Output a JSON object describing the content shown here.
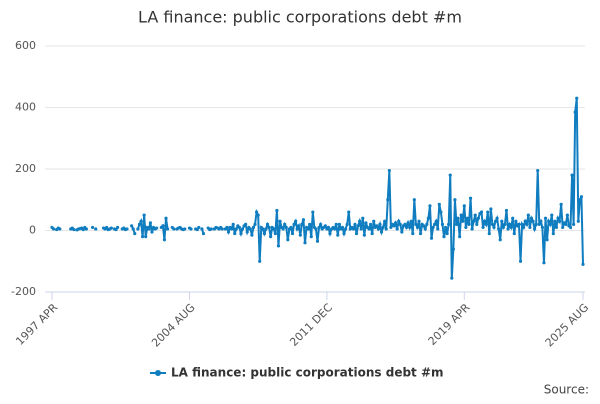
{
  "chart_data": {
    "type": "line",
    "title": "LA finance: public corporations debt #m",
    "source_label": "Source:",
    "categories": [
      "1997 APR",
      null,
      null,
      null,
      null,
      null,
      null,
      null,
      null,
      null,
      null,
      null,
      null,
      null,
      null,
      null,
      null,
      null,
      null,
      null,
      null,
      null,
      null,
      null,
      null,
      null,
      null,
      null,
      null,
      null,
      null,
      null,
      null,
      null,
      null,
      null,
      null,
      null,
      null,
      null,
      null,
      null,
      null,
      null,
      null,
      null,
      null,
      null,
      null,
      null,
      null,
      null,
      null,
      null,
      null,
      null,
      null,
      null,
      null,
      null,
      null,
      null,
      null,
      null,
      null,
      null,
      null,
      null,
      null,
      null,
      null,
      null,
      null,
      null,
      null,
      null,
      null,
      null,
      null,
      null,
      null,
      null,
      null,
      null,
      null,
      null,
      null,
      null,
      "2004 AUG",
      null,
      null,
      null,
      null,
      null,
      null,
      null,
      null,
      null,
      null,
      null,
      null,
      null,
      null,
      null,
      null,
      null,
      null,
      null,
      null,
      null,
      null,
      null,
      null,
      null,
      null,
      null,
      null,
      null,
      null,
      null,
      null,
      null,
      null,
      null,
      null,
      null,
      null,
      null,
      null,
      null,
      null,
      null,
      null,
      null,
      null,
      null,
      null,
      null,
      null,
      null,
      null,
      null,
      null,
      null,
      null,
      null,
      null,
      null,
      null,
      null,
      null,
      null,
      null,
      null,
      null,
      null,
      null,
      null,
      null,
      null,
      null,
      null,
      null,
      null,
      null,
      null,
      null,
      null,
      null,
      null,
      null,
      null,
      null,
      null,
      null,
      null,
      "2011 DEC",
      null,
      null,
      null,
      null,
      null,
      null,
      null,
      null,
      null,
      null,
      null,
      null,
      null,
      null,
      null,
      null,
      null,
      null,
      null,
      null,
      null,
      null,
      null,
      null,
      null,
      null,
      null,
      null,
      null,
      null,
      null,
      null,
      null,
      null,
      null,
      null,
      null,
      null,
      null,
      null,
      null,
      null,
      null,
      null,
      null,
      null,
      null,
      null,
      null,
      null,
      null,
      null,
      null,
      null,
      null,
      null,
      null,
      null,
      null,
      null,
      null,
      null,
      null,
      null,
      null,
      null,
      null,
      null,
      null,
      null,
      null,
      null,
      null,
      null,
      null,
      null,
      null,
      null,
      null,
      null,
      null,
      null,
      null,
      null,
      null,
      null,
      null,
      "2019 APR",
      null,
      null,
      null,
      null,
      null,
      null,
      null,
      null,
      null,
      null,
      null,
      null,
      null,
      null,
      null,
      null,
      null,
      null,
      null,
      null,
      null,
      null,
      null,
      null,
      null,
      null,
      null,
      null,
      null,
      null,
      null,
      null,
      null,
      null,
      null,
      null,
      null,
      null,
      null,
      null,
      null,
      null,
      null,
      null,
      null,
      null,
      null,
      null,
      null,
      null,
      null,
      null,
      null,
      null,
      null,
      null,
      null,
      null,
      null,
      null,
      null,
      null,
      null,
      null,
      null,
      null,
      null,
      null,
      null,
      null,
      null,
      null,
      null,
      null,
      null,
      "2025 AUG"
    ],
    "series": [
      {
        "name": "LA finance: public corporations debt #m",
        "color": "#0f7dbf",
        "values": [
          10,
          5,
          null,
          3,
          8,
          5,
          null,
          null,
          null,
          null,
          null,
          null,
          5,
          8,
          3,
          null,
          2,
          5,
          6,
          8,
          3,
          10,
          5,
          null,
          null,
          null,
          10,
          null,
          5,
          null,
          null,
          null,
          null,
          8,
          5,
          10,
          3,
          5,
          8,
          null,
          5,
          3,
          10,
          null,
          null,
          5,
          8,
          3,
          5,
          null,
          null,
          15,
          5,
          -10,
          null,
          5,
          20,
          30,
          -20,
          50,
          -20,
          10,
          5,
          25,
          -5,
          10,
          5,
          8,
          null,
          null,
          10,
          15,
          -30,
          40,
          5,
          null,
          null,
          10,
          5,
          null,
          5,
          8,
          10,
          5,
          3,
          5,
          null,
          null,
          8,
          5,
          null,
          null,
          5,
          3,
          10,
          null,
          5,
          -10,
          null,
          null,
          8,
          3,
          5,
          null,
          5,
          10,
          8,
          5,
          10,
          5,
          null,
          5,
          10,
          -5,
          10,
          5,
          20,
          -10,
          5,
          15,
          10,
          -10,
          5,
          15,
          20,
          -5,
          10,
          5,
          -15,
          10,
          20,
          60,
          50,
          -100,
          10,
          5,
          -10,
          5,
          20,
          10,
          -20,
          10,
          5,
          -10,
          65,
          -50,
          30,
          10,
          5,
          20,
          10,
          -30,
          5,
          10,
          -10,
          20,
          30,
          5,
          15,
          -15,
          20,
          35,
          -40,
          10,
          5,
          20,
          -20,
          60,
          10,
          5,
          -35,
          10,
          20,
          5,
          10,
          15,
          5,
          10,
          -10,
          5,
          10,
          5,
          20,
          -15,
          20,
          5,
          10,
          -10,
          5,
          20,
          60,
          5,
          10,
          5,
          20,
          -10,
          15,
          30,
          5,
          40,
          -15,
          25,
          10,
          5,
          20,
          -10,
          30,
          10,
          15,
          5,
          20,
          -5,
          10,
          30,
          5,
          100,
          195,
          10,
          20,
          15,
          25,
          5,
          30,
          20,
          -5,
          15,
          20,
          10,
          25,
          10,
          30,
          -10,
          100,
          20,
          10,
          30,
          -10,
          20,
          15,
          5,
          20,
          40,
          80,
          -25,
          10,
          20,
          30,
          5,
          85,
          60,
          20,
          -20,
          10,
          -10,
          20,
          180,
          -155,
          -60,
          100,
          20,
          40,
          -20,
          50,
          30,
          80,
          10,
          40,
          20,
          105,
          5,
          30,
          50,
          20,
          40,
          55,
          60,
          10,
          30,
          20,
          60,
          -10,
          70,
          20,
          10,
          30,
          40,
          5,
          -30,
          30,
          10,
          20,
          65,
          5,
          20,
          10,
          40,
          -10,
          30,
          15,
          20,
          -100,
          20,
          10,
          30,
          20,
          50,
          10,
          40,
          30,
          5,
          20,
          195,
          20,
          30,
          10,
          -105,
          40,
          -30,
          30,
          20,
          50,
          -10,
          30,
          10,
          40,
          30,
          85,
          10,
          25,
          20,
          50,
          15,
          10,
          180,
          20,
          385,
          430,
          30,
          100,
          110,
          -110
        ]
      }
    ],
    "ylim": [
      -200,
      600
    ],
    "yticks": [
      -200,
      0,
      200,
      400,
      600
    ],
    "grid": true,
    "legend": "bottom"
  }
}
